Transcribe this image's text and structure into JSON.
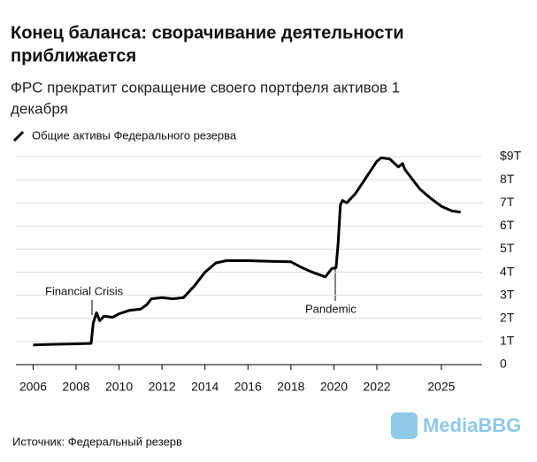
{
  "chart_data": {
    "type": "line",
    "title_lines": [
      "Конец баланса: сворачивание деятельности",
      "приближается"
    ],
    "subtitle_lines": [
      "ФРС прекратит сокращение своего портфеля активов 1",
      "декабря"
    ],
    "x": [
      2006.0,
      2007.0,
      2008.0,
      2008.7,
      2008.8,
      2008.95,
      2009.1,
      2009.3,
      2009.7,
      2010.0,
      2010.5,
      2011.0,
      2011.3,
      2011.5,
      2012.0,
      2012.5,
      2013.0,
      2013.5,
      2014.0,
      2014.5,
      2015.0,
      2016.0,
      2017.0,
      2018.0,
      2018.5,
      2019.0,
      2019.6,
      2019.9,
      2020.1,
      2020.2,
      2020.3,
      2020.4,
      2020.6,
      2021.0,
      2021.5,
      2022.0,
      2022.2,
      2022.6,
      2023.0,
      2023.2,
      2023.3,
      2024.0,
      2024.5,
      2025.0,
      2025.5,
      2025.9
    ],
    "series": [
      {
        "name": "Общие активы Федерального резерва",
        "color": "#000000",
        "values": [
          0.85,
          0.88,
          0.9,
          0.92,
          1.8,
          2.25,
          1.9,
          2.1,
          2.05,
          2.2,
          2.35,
          2.4,
          2.6,
          2.85,
          2.9,
          2.85,
          2.9,
          3.4,
          4.0,
          4.4,
          4.5,
          4.5,
          4.47,
          4.45,
          4.2,
          4.0,
          3.8,
          4.15,
          4.2,
          5.3,
          6.9,
          7.1,
          7.0,
          7.4,
          8.1,
          8.8,
          8.95,
          8.9,
          8.55,
          8.7,
          8.45,
          7.6,
          7.2,
          6.85,
          6.65,
          6.6
        ]
      }
    ],
    "xlim": [
      2005.2,
      2026.9
    ],
    "xticks": [
      2006,
      2008,
      2010,
      2012,
      2014,
      2016,
      2018,
      2020,
      2022,
      2025
    ],
    "ylim": [
      0,
      9
    ],
    "yticks": [
      0,
      {
        "value": 1,
        "label": "1T"
      },
      {
        "value": 2,
        "label": "2T"
      },
      {
        "value": 3,
        "label": "3T"
      },
      {
        "value": 4,
        "label": "4T"
      },
      {
        "value": 5,
        "label": "5T"
      },
      {
        "value": 6,
        "label": "6T"
      },
      {
        "value": 7,
        "label": "7T"
      },
      {
        "value": 8,
        "label": "8T"
      },
      {
        "value": 9,
        "label": "$9T"
      }
    ],
    "grid": true,
    "annotations": [
      "Financial Crisis",
      "Pandemic"
    ],
    "source": "Источник: Федеральный резерв",
    "watermark": "MediaBBG"
  }
}
